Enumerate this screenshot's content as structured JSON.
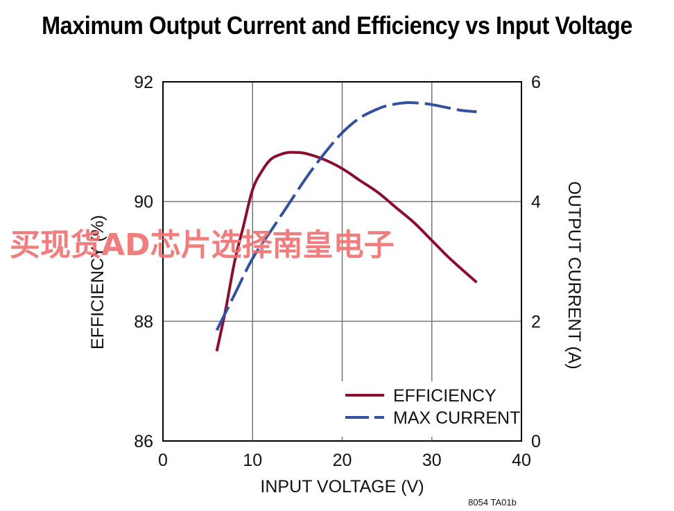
{
  "chart_data": {
    "type": "line",
    "title": "Maximum Output Current and Efficiency vs Input Voltage",
    "xlabel": "INPUT VOLTAGE (V)",
    "ylabel_left": "EFFICIENCY (%)",
    "ylabel_right": "OUTPUT CURRENT (A)",
    "xlim": [
      0,
      40
    ],
    "ylim_left": [
      86,
      92
    ],
    "ylim_right": [
      0,
      6
    ],
    "x_ticks": [
      0,
      10,
      20,
      30,
      40
    ],
    "y_left_ticks": [
      86,
      88,
      90,
      92
    ],
    "y_right_ticks": [
      0,
      2,
      4,
      6
    ],
    "grid": true,
    "legend_position": "bottom-right",
    "colors": {
      "efficiency": "#8b0e2e",
      "max_current": "#3450a0"
    },
    "series": [
      {
        "name": "EFFICIENCY",
        "axis": "left",
        "style": "solid",
        "x": [
          6,
          7,
          8,
          9,
          10,
          11,
          12,
          13,
          14,
          15,
          16,
          18,
          20,
          22,
          24,
          26,
          28,
          30,
          32,
          35
        ],
        "y": [
          87.5,
          88.2,
          89.0,
          89.6,
          90.2,
          90.5,
          90.7,
          90.78,
          90.82,
          90.82,
          90.8,
          90.7,
          90.55,
          90.35,
          90.15,
          89.9,
          89.65,
          89.35,
          89.05,
          88.65
        ]
      },
      {
        "name": "MAX CURRENT",
        "axis": "right",
        "style": "dashed",
        "x": [
          6,
          8,
          10,
          12,
          14,
          16,
          18,
          20,
          22,
          24,
          25,
          26,
          27,
          28,
          29,
          30,
          31,
          32,
          33,
          34,
          35
        ],
        "y": [
          1.85,
          2.45,
          3.05,
          3.5,
          3.95,
          4.4,
          4.8,
          5.15,
          5.4,
          5.55,
          5.6,
          5.63,
          5.65,
          5.65,
          5.64,
          5.62,
          5.59,
          5.56,
          5.53,
          5.51,
          5.5
        ]
      }
    ]
  },
  "footnote": "8054 TA01b",
  "watermark": "买现货AD芯片选择南皇电子"
}
